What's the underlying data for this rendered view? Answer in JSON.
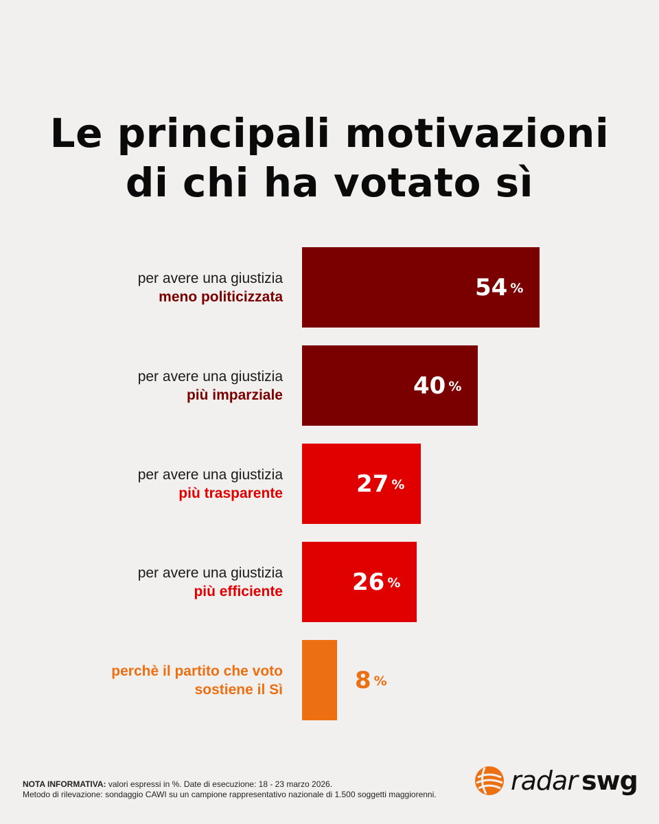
{
  "title": {
    "line1": "Le principali motivazioni",
    "line2": "di chi ha votato sì"
  },
  "chart_data": {
    "type": "bar",
    "orientation": "horizontal",
    "unit": "%",
    "categories": [
      {
        "line1": "per avere una giustizia",
        "line2": "meno politicizzata"
      },
      {
        "line1": "per avere una giustizia",
        "line2": "più imparziale"
      },
      {
        "line1": "per avere una giustizia",
        "line2": "più trasparente"
      },
      {
        "line1": "per avere una giustizia",
        "line2": "più efficiente"
      },
      {
        "line1": "perchè il partito che voto",
        "line2": "sostiene il Sì"
      }
    ],
    "values": [
      54,
      40,
      27,
      26,
      8
    ],
    "colors": [
      "#7a0000",
      "#7a0000",
      "#e00000",
      "#e00000",
      "#ec6f12"
    ],
    "label_colors": [
      "#7a0000",
      "#7a0000",
      "#e00000",
      "#e00000",
      "#ec6f12"
    ],
    "value_label_colors": [
      "#ffffff",
      "#ffffff",
      "#ffffff",
      "#ffffff",
      "#ec6f12"
    ],
    "xlim": [
      0,
      54
    ]
  },
  "footer": {
    "note_label": "NOTA INFORMATIVA:",
    "note_text": " valori espressi in %. Date di esecuzione: 18 - 23 marzo 2026.",
    "method": "Metodo di rilevazione: sondaggio CAWI su un campione rappresentativo nazionale di 1.500 soggetti maggiorenni."
  },
  "logo": {
    "part1": "radar",
    "part2": "swg",
    "accent": "#ec6f12"
  }
}
